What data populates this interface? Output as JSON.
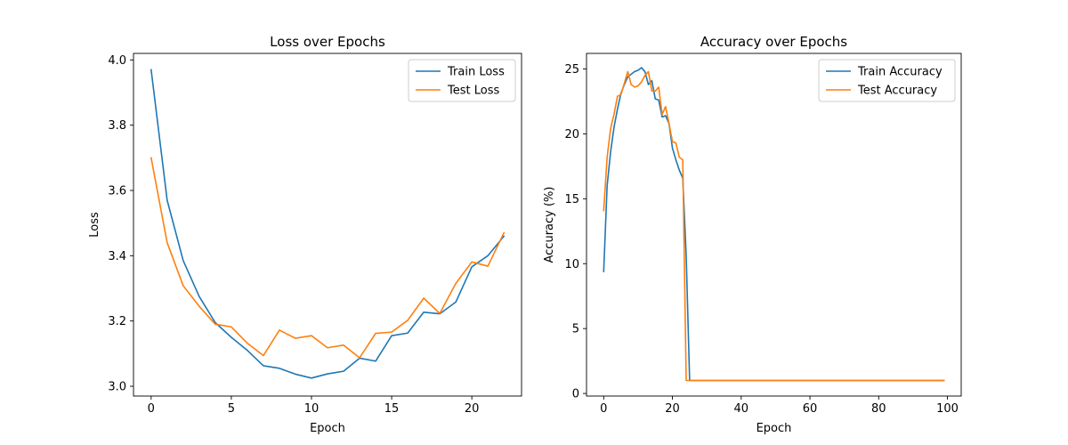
{
  "chart_data": [
    {
      "type": "line",
      "title": "Loss over Epochs",
      "xlabel": "Epoch",
      "ylabel": "Loss",
      "xlim": [
        -1.1,
        23.1
      ],
      "ylim": [
        2.97,
        4.02
      ],
      "xticks": [
        0,
        5,
        10,
        15,
        20
      ],
      "yticks": [
        3.0,
        3.2,
        3.4,
        3.6,
        3.8,
        4.0
      ],
      "xtick_labels": [
        "0",
        "5",
        "10",
        "15",
        "20"
      ],
      "ytick_labels": [
        "3.0",
        "3.2",
        "3.4",
        "3.6",
        "3.8",
        "4.0"
      ],
      "legend_position": "top-right",
      "x": [
        0,
        1,
        2,
        3,
        4,
        5,
        6,
        7,
        8,
        9,
        10,
        11,
        12,
        13,
        14,
        15,
        16,
        17,
        18,
        19,
        20,
        21,
        22
      ],
      "series": [
        {
          "name": "Train Loss",
          "color": "#1f77b4",
          "values": [
            3.97,
            3.57,
            3.385,
            3.275,
            3.195,
            3.15,
            3.11,
            3.063,
            3.055,
            3.037,
            3.025,
            3.038,
            3.046,
            3.086,
            3.077,
            3.155,
            3.163,
            3.227,
            3.222,
            3.258,
            3.366,
            3.4,
            3.46
          ]
        },
        {
          "name": "Test Loss",
          "color": "#ff7f0e",
          "values": [
            3.7,
            3.44,
            3.308,
            3.245,
            3.19,
            3.182,
            3.132,
            3.094,
            3.172,
            3.147,
            3.155,
            3.118,
            3.126,
            3.087,
            3.162,
            3.166,
            3.202,
            3.27,
            3.223,
            3.315,
            3.381,
            3.368,
            3.47
          ]
        }
      ]
    },
    {
      "type": "line",
      "title": "Accuracy over Epochs",
      "xlabel": "Epoch",
      "ylabel": "Accuracy (%)",
      "xlim": [
        -5,
        104
      ],
      "ylim": [
        -0.2,
        26.2
      ],
      "xticks": [
        0,
        20,
        40,
        60,
        80,
        100
      ],
      "yticks": [
        0,
        5,
        10,
        15,
        20,
        25
      ],
      "xtick_labels": [
        "0",
        "20",
        "40",
        "60",
        "80",
        "100"
      ],
      "ytick_labels": [
        "0",
        "5",
        "10",
        "15",
        "20",
        "25"
      ],
      "legend_position": "top-right",
      "series": [
        {
          "name": "Train Accuracy",
          "color": "#1f77b4",
          "points": [
            [
              0,
              9.4
            ],
            [
              1,
              16.0
            ],
            [
              2,
              18.6
            ],
            [
              3,
              20.5
            ],
            [
              4,
              21.9
            ],
            [
              5,
              23.1
            ],
            [
              6,
              23.8
            ],
            [
              7,
              24.4
            ],
            [
              8,
              24.6
            ],
            [
              9,
              24.8
            ],
            [
              10,
              24.9
            ],
            [
              11,
              25.1
            ],
            [
              12,
              24.8
            ],
            [
              13,
              23.8
            ],
            [
              14,
              24.1
            ],
            [
              15,
              22.7
            ],
            [
              16,
              22.6
            ],
            [
              17,
              21.3
            ],
            [
              18,
              21.4
            ],
            [
              19,
              20.8
            ],
            [
              20,
              18.9
            ],
            [
              21,
              18.0
            ],
            [
              22,
              17.2
            ],
            [
              23,
              16.6
            ],
            [
              24,
              10.6
            ],
            [
              25,
              1.0
            ],
            [
              99,
              1.0
            ]
          ]
        },
        {
          "name": "Test Accuracy",
          "color": "#ff7f0e",
          "points": [
            [
              0,
              14.1
            ],
            [
              1,
              18.2
            ],
            [
              2,
              20.4
            ],
            [
              3,
              21.5
            ],
            [
              4,
              22.9
            ],
            [
              5,
              23.0
            ],
            [
              6,
              23.9
            ],
            [
              7,
              24.8
            ],
            [
              8,
              23.8
            ],
            [
              9,
              23.6
            ],
            [
              10,
              23.7
            ],
            [
              11,
              24.0
            ],
            [
              12,
              24.5
            ],
            [
              13,
              24.8
            ],
            [
              14,
              23.3
            ],
            [
              15,
              23.3
            ],
            [
              16,
              23.6
            ],
            [
              17,
              21.5
            ],
            [
              18,
              22.1
            ],
            [
              19,
              20.8
            ],
            [
              20,
              19.4
            ],
            [
              21,
              19.3
            ],
            [
              22,
              18.2
            ],
            [
              23,
              18.0
            ],
            [
              24,
              1.0
            ],
            [
              99,
              1.0
            ]
          ]
        }
      ]
    }
  ]
}
